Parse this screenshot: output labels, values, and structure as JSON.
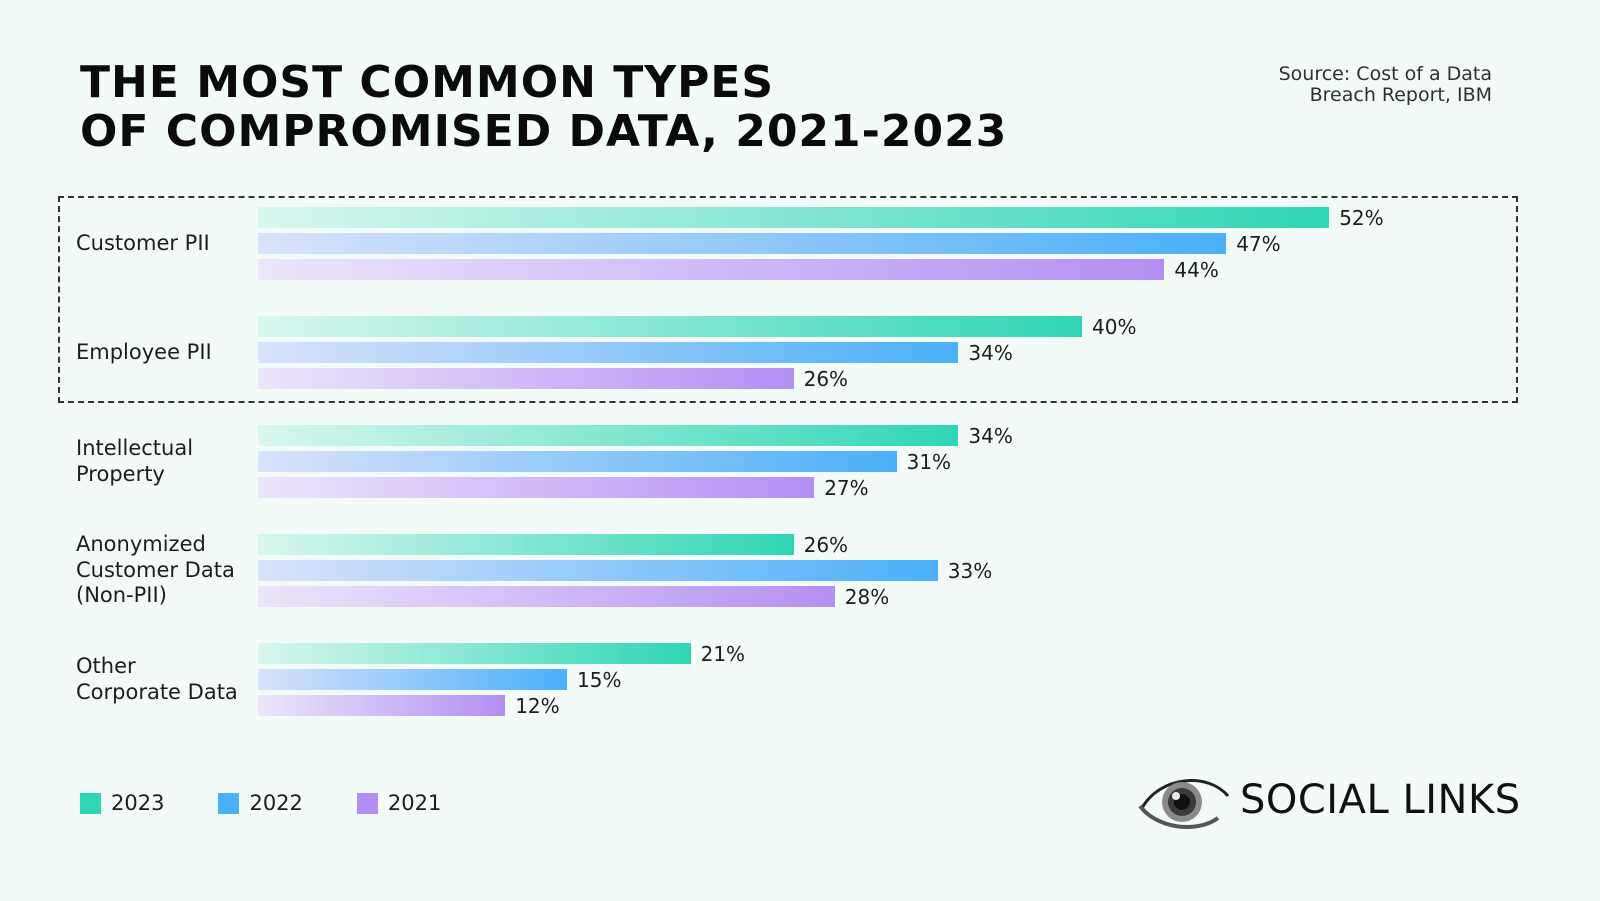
{
  "title_lines": [
    "THE MOST COMMON TYPES",
    "OF COMPROMISED DATA, 2021-2023"
  ],
  "source_lines": [
    "Source: Cost of a Data",
    "Breach Report, IBM"
  ],
  "logo_text": "SOCIAL LINKS",
  "colors": {
    "2023": "#2fd6b4",
    "2022": "#4ab0f7",
    "2021": "#b48ff3",
    "background": "#f3fbf9"
  },
  "chart_data": {
    "type": "bar",
    "orientation": "horizontal",
    "title": "THE MOST COMMON TYPES OF COMPROMISED DATA, 2021-2023",
    "categories": [
      [
        "Customer PII"
      ],
      [
        "Employee PII"
      ],
      [
        "Intellectual",
        "Property"
      ],
      [
        "Anonymized",
        "Customer Data",
        "(Non-PII)"
      ],
      [
        "Other",
        "Corporate Data"
      ]
    ],
    "series": [
      {
        "name": "2023",
        "values": [
          52,
          40,
          34,
          26,
          21
        ],
        "labels": [
          "52%",
          "40%",
          "34%",
          "26%",
          "21%"
        ]
      },
      {
        "name": "2022",
        "values": [
          47,
          34,
          31,
          33,
          15
        ],
        "labels": [
          "47%",
          "34%",
          "31%",
          "33%",
          "15%"
        ]
      },
      {
        "name": "2021",
        "values": [
          44,
          26,
          27,
          28,
          12
        ],
        "labels": [
          "44%",
          "26%",
          "27%",
          "28%",
          "12%"
        ]
      }
    ],
    "highlighted_categories": [
      "Customer PII",
      "Employee PII"
    ],
    "legend_position": "bottom-left",
    "grid": false
  }
}
